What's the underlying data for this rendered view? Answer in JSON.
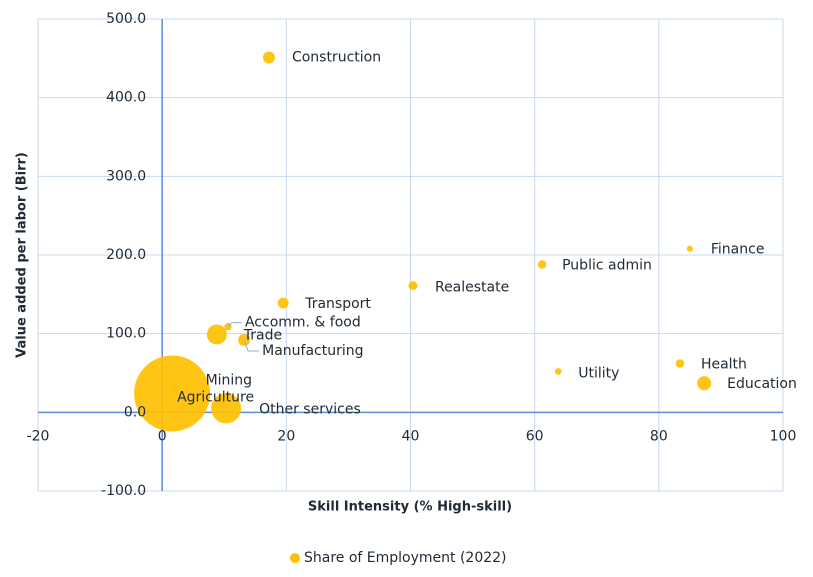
{
  "chart_data": {
    "type": "bubble",
    "x_label": "Skill Intensity (% High-skill)",
    "y_label": "Value added per labor (Birr)",
    "xlim": [
      -20,
      100
    ],
    "xticks": [
      -20,
      0,
      20,
      40,
      60,
      80,
      100
    ],
    "ylim": [
      -100,
      500
    ],
    "yticks": [
      {
        "value": -100,
        "label": "-100.0"
      },
      {
        "value": 0,
        "label": "0.0"
      },
      {
        "value": 100,
        "label": "100.0"
      },
      {
        "value": 200,
        "label": "200.0"
      },
      {
        "value": 300,
        "label": "300.0"
      },
      {
        "value": 400,
        "label": "400.0"
      },
      {
        "value": 500,
        "label": "500.0"
      }
    ],
    "grid": true,
    "legend_position": "bottom",
    "series": [
      {
        "name": "Share of Employment (2022)",
        "color": "#ffc000",
        "labels": [
          "Construction",
          "Transport",
          "Realestate",
          "Public admin",
          "Finance",
          "Accomm. & food",
          "Trade",
          "Manufacturing",
          "Utility",
          "Health",
          "Education",
          "Mining",
          "Agriculture",
          "Other services"
        ],
        "x": [
          17.2,
          19.5,
          40.4,
          61.2,
          85.0,
          10.6,
          8.8,
          13.2,
          63.8,
          83.4,
          87.3,
          2,
          1.6,
          10.3
        ],
        "values": [
          451,
          139,
          161,
          188,
          208,
          109,
          99,
          92,
          52,
          62,
          37,
          30,
          24,
          5
        ],
        "sizes": [
          1.6,
          1.3,
          0.9,
          0.8,
          0.4,
          0.6,
          4.4,
          1.6,
          0.5,
          0.8,
          2.2,
          0.3,
          64,
          10
        ]
      }
    ]
  }
}
